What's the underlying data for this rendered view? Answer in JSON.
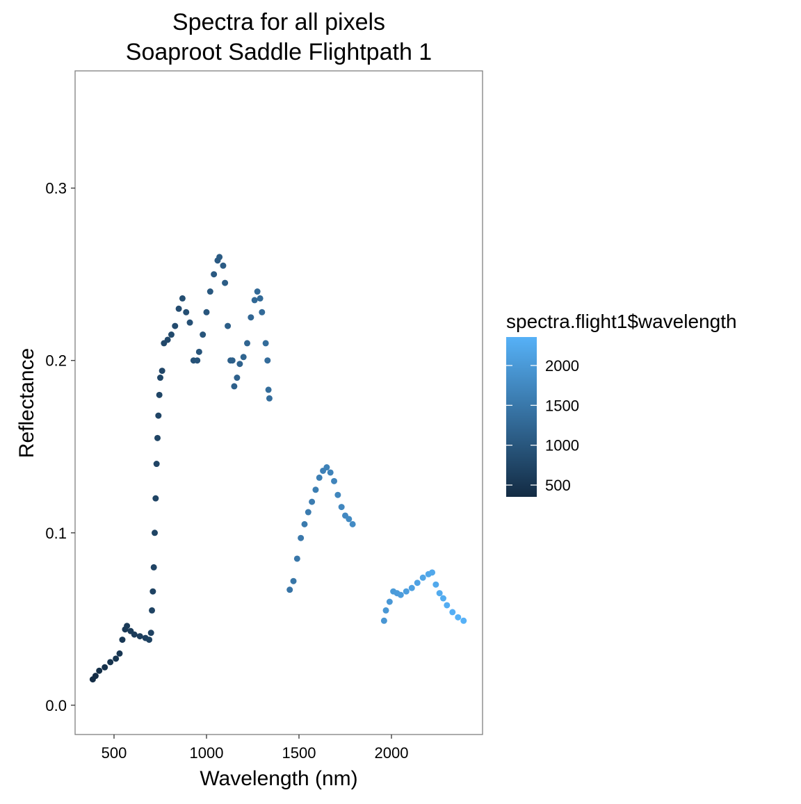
{
  "chart_data": {
    "type": "scatter",
    "title": "Spectra for all pixels",
    "subtitle": "Soaproot Saddle Flightpath 1",
    "xlabel": "Wavelength (nm)",
    "ylabel": "Reflectance",
    "x": [
      385,
      400,
      420,
      450,
      480,
      510,
      530,
      545,
      560,
      570,
      590,
      610,
      640,
      670,
      690,
      700,
      705,
      710,
      715,
      720,
      725,
      730,
      735,
      740,
      745,
      750,
      760,
      770,
      790,
      810,
      830,
      850,
      870,
      890,
      910,
      930,
      950,
      960,
      980,
      1000,
      1020,
      1040,
      1060,
      1070,
      1090,
      1100,
      1115,
      1130,
      1140,
      1150,
      1165,
      1180,
      1200,
      1220,
      1240,
      1260,
      1275,
      1290,
      1300,
      1320,
      1330,
      1335,
      1340,
      1450,
      1470,
      1490,
      1510,
      1530,
      1550,
      1570,
      1590,
      1610,
      1630,
      1650,
      1670,
      1690,
      1710,
      1730,
      1750,
      1770,
      1790,
      1960,
      1970,
      1990,
      2010,
      2030,
      2050,
      2080,
      2110,
      2140,
      2170,
      2200,
      2220,
      2240,
      2260,
      2280,
      2300,
      2330,
      2360,
      2390
    ],
    "values": [
      0.015,
      0.017,
      0.02,
      0.022,
      0.025,
      0.027,
      0.03,
      0.038,
      0.044,
      0.046,
      0.043,
      0.041,
      0.04,
      0.039,
      0.038,
      0.042,
      0.055,
      0.066,
      0.08,
      0.1,
      0.12,
      0.14,
      0.155,
      0.168,
      0.18,
      0.19,
      0.194,
      0.21,
      0.212,
      0.215,
      0.22,
      0.23,
      0.236,
      0.228,
      0.222,
      0.2,
      0.2,
      0.205,
      0.215,
      0.228,
      0.24,
      0.25,
      0.258,
      0.26,
      0.255,
      0.245,
      0.22,
      0.2,
      0.2,
      0.185,
      0.19,
      0.198,
      0.202,
      0.21,
      0.225,
      0.235,
      0.24,
      0.236,
      0.228,
      0.21,
      0.2,
      0.183,
      0.178,
      0.067,
      0.072,
      0.085,
      0.097,
      0.105,
      0.112,
      0.118,
      0.125,
      0.132,
      0.136,
      0.138,
      0.135,
      0.13,
      0.122,
      0.115,
      0.11,
      0.108,
      0.105,
      0.049,
      0.055,
      0.06,
      0.066,
      0.065,
      0.064,
      0.066,
      0.068,
      0.071,
      0.074,
      0.076,
      0.077,
      0.07,
      0.065,
      0.062,
      0.058,
      0.054,
      0.051,
      0.049
    ],
    "xlim": [
      289.5,
      2492.5
    ],
    "xticks": [
      500,
      1000,
      1500,
      2000
    ],
    "ylim": [
      -0.017,
      0.368
    ],
    "yticks": [
      {
        "value": 0,
        "label": "0.0"
      },
      0.1,
      0.2,
      0.3
    ],
    "grid": false,
    "colorbar": {
      "title": "spectra.flight1$wavelength",
      "low": "#132B43",
      "high": "#56B1F7",
      "limits": [
        352,
        2357
      ],
      "ticks": [
        500,
        1000,
        1500,
        2000
      ]
    }
  }
}
